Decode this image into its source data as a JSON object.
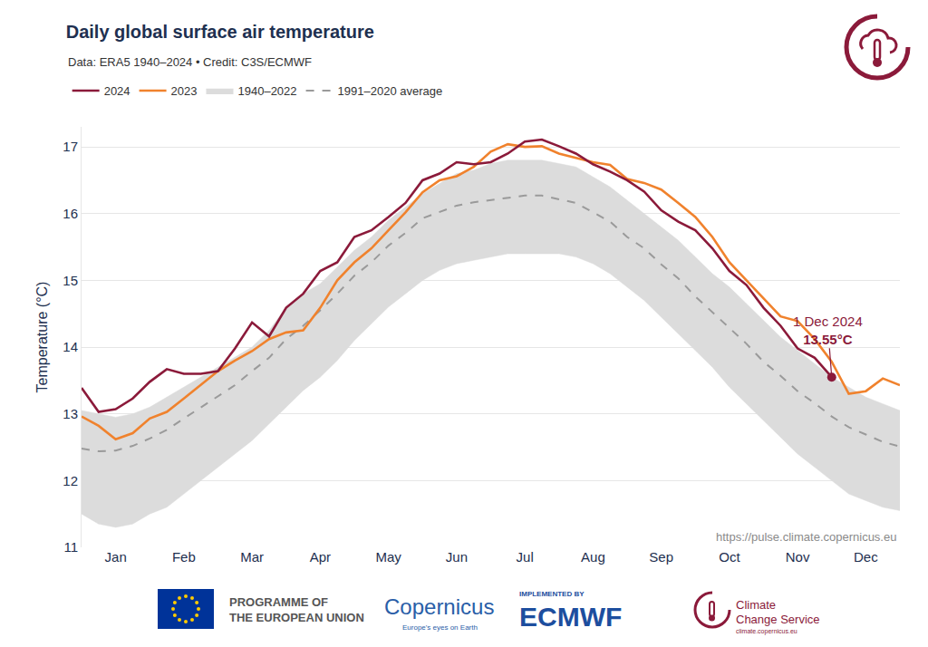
{
  "chart_data": {
    "type": "line",
    "title": "Daily global surface air temperature",
    "subtitle": "Data: ERA5 1940–2024 • Credit: C3S/ECMWF",
    "y_label": "Temperature (°C)",
    "note": "https://pulse.climate.copernicus.eu",
    "categories": [
      null,
      null,
      "Jan",
      null,
      null,
      null,
      "Feb",
      null,
      null,
      null,
      "Mar",
      null,
      null,
      null,
      "Apr",
      null,
      null,
      null,
      "May",
      null,
      null,
      null,
      "Jun",
      null,
      null,
      null,
      "Jul",
      null,
      null,
      null,
      "Aug",
      null,
      null,
      null,
      "Sep",
      null,
      null,
      null,
      "Oct",
      null,
      null,
      null,
      "Nov",
      null,
      null,
      null,
      "Dec",
      null,
      null
    ],
    "series": [
      {
        "name": "2024",
        "color": "#8b1a3a",
        "marker": "last",
        "values": [
          13.39,
          13.03,
          13.07,
          13.23,
          13.48,
          13.67,
          13.6,
          13.6,
          13.64,
          13.98,
          14.37,
          14.16,
          14.59,
          14.8,
          15.14,
          15.27,
          15.65,
          15.75,
          15.95,
          16.16,
          16.5,
          16.6,
          16.77,
          16.74,
          16.77,
          16.9,
          17.08,
          17.11,
          17.01,
          16.9,
          16.74,
          16.63,
          16.5,
          16.33,
          16.05,
          15.88,
          15.75,
          15.48,
          15.14,
          14.93,
          14.59,
          14.32,
          13.98,
          13.84,
          13.55,
          null,
          null,
          null,
          null
        ]
      },
      {
        "name": "2023",
        "color": "#f0822d",
        "values": [
          12.96,
          12.82,
          12.62,
          12.71,
          12.93,
          13.03,
          13.23,
          13.43,
          13.64,
          13.8,
          13.94,
          14.12,
          14.22,
          14.25,
          14.59,
          15.0,
          15.27,
          15.48,
          15.75,
          16.02,
          16.32,
          16.5,
          16.56,
          16.7,
          16.93,
          17.04,
          17.0,
          17.01,
          16.9,
          16.84,
          16.77,
          16.73,
          16.52,
          16.46,
          16.36,
          16.16,
          15.95,
          15.65,
          15.27,
          15.0,
          14.73,
          14.46,
          14.39,
          14.12,
          13.78,
          13.3,
          13.34,
          13.53,
          13.43
        ]
      },
      {
        "name": "1940–2022",
        "color": "#dcdcdc",
        "type": "band",
        "low": [
          11.5,
          11.35,
          11.3,
          11.35,
          11.5,
          11.6,
          11.8,
          12.0,
          12.2,
          12.4,
          12.6,
          12.85,
          13.1,
          13.35,
          13.55,
          13.8,
          14.1,
          14.35,
          14.6,
          14.8,
          15.0,
          15.15,
          15.25,
          15.3,
          15.35,
          15.4,
          15.4,
          15.4,
          15.4,
          15.35,
          15.25,
          15.1,
          14.9,
          14.7,
          14.45,
          14.2,
          13.95,
          13.7,
          13.4,
          13.15,
          12.9,
          12.65,
          12.4,
          12.2,
          12.0,
          11.8,
          11.7,
          11.6,
          11.55
        ],
        "high": [
          13.05,
          13.0,
          12.95,
          13.0,
          13.1,
          13.25,
          13.4,
          13.55,
          13.7,
          13.85,
          14.0,
          14.25,
          14.6,
          14.8,
          14.95,
          15.2,
          15.45,
          15.65,
          15.9,
          16.1,
          16.3,
          16.45,
          16.6,
          16.65,
          16.75,
          16.8,
          16.8,
          16.8,
          16.75,
          16.7,
          16.55,
          16.4,
          16.2,
          16.0,
          15.8,
          15.6,
          15.35,
          15.1,
          14.9,
          14.65,
          14.4,
          14.15,
          13.95,
          13.75,
          13.55,
          13.4,
          13.25,
          13.15,
          13.05
        ]
      },
      {
        "name": "1991–2020 average",
        "color": "#9a9a9a",
        "line_style": "dash",
        "values": [
          12.48,
          12.44,
          12.45,
          12.52,
          12.63,
          12.76,
          12.93,
          13.1,
          13.27,
          13.43,
          13.64,
          13.84,
          14.12,
          14.32,
          14.55,
          14.8,
          15.07,
          15.27,
          15.52,
          15.71,
          15.93,
          16.03,
          16.12,
          16.17,
          16.2,
          16.24,
          16.27,
          16.27,
          16.22,
          16.16,
          16.02,
          15.88,
          15.65,
          15.48,
          15.24,
          15.03,
          14.76,
          14.52,
          14.28,
          14.05,
          13.78,
          13.57,
          13.34,
          13.16,
          12.96,
          12.8,
          12.69,
          12.58,
          12.51
        ]
      }
    ],
    "ylim": [
      11,
      17.3
    ],
    "yticks": [
      11,
      12,
      13,
      14,
      15,
      16,
      17
    ],
    "grid": true,
    "legend": "top-left",
    "annotations": [
      {
        "lines": [
          "1 Dec 2024",
          "13.55°C"
        ],
        "x": 44,
        "y": 13.55
      }
    ]
  },
  "footer": {
    "eu": [
      "PROGRAMME OF",
      "THE EUROPEAN UNION"
    ],
    "copernicus": "Copernicus",
    "copernicus_tagline": "Europe's eyes on Earth",
    "implemented_by": "IMPLEMENTED BY",
    "ecmwf": "ECMWF",
    "c3s": [
      "Climate",
      "Change Service"
    ],
    "c3s_url": "climate.copernicus.eu"
  }
}
